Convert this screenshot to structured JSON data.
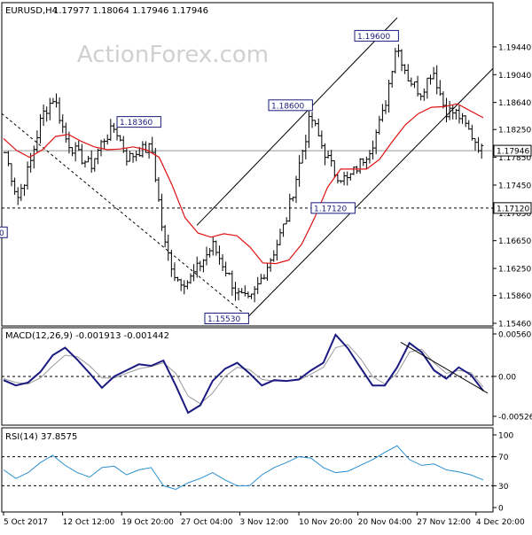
{
  "chart_data": [
    {
      "type": "ohlc",
      "title": "EURUSD,H4",
      "header_values": [
        "1.17977",
        "1.18064",
        "1.17946",
        "1.17946"
      ],
      "watermark": "ActionForex.com",
      "ylim": [
        1.1546,
        1.1986
      ],
      "yticks": [
        "1.19440",
        "1.19040",
        "1.18640",
        "1.18250",
        "1.17850",
        "1.17450",
        "1.17050",
        "1.16650",
        "1.16250",
        "1.15860",
        "1.15460"
      ],
      "current_price_label": "1.17946",
      "current_price": 1.17946,
      "level_line": {
        "label": "1.17120",
        "value": 1.1712
      },
      "annotations": [
        {
          "label": "1.18360",
          "value": 1.1836,
          "anchor": "left"
        },
        {
          "label": "1.18600",
          "value": 1.186,
          "anchor": "left"
        },
        {
          "label": "1.19600",
          "value": 1.196,
          "anchor": "left"
        },
        {
          "label": "1.17120",
          "value": 1.1712,
          "anchor": "left"
        },
        {
          "label": "1.15530",
          "value": 1.1553,
          "anchor": "left"
        },
        {
          "label": "0",
          "value": 1.1677,
          "anchor": "left-edge"
        }
      ],
      "close_path": [
        1.1792,
        1.1726,
        1.1772,
        1.1845,
        1.1872,
        1.181,
        1.1788,
        1.1772,
        1.181,
        1.1828,
        1.1783,
        1.1795,
        1.1798,
        1.1663,
        1.161,
        1.1606,
        1.1632,
        1.1658,
        1.1625,
        1.1588,
        1.1576,
        1.1612,
        1.165,
        1.1695,
        1.1769,
        1.1845,
        1.1798,
        1.1762,
        1.1752,
        1.1775,
        1.1802,
        1.1852,
        1.1948,
        1.1899,
        1.1878,
        1.1912,
        1.1853,
        1.1848,
        1.1822,
        1.1795
      ],
      "ma_line": [
        1.1812,
        1.1795,
        1.1785,
        1.1796,
        1.1815,
        1.1818,
        1.1808,
        1.18,
        1.1796,
        1.1797,
        1.18,
        1.1796,
        1.1785,
        1.1745,
        1.1698,
        1.1676,
        1.167,
        1.1675,
        1.1672,
        1.1656,
        1.1633,
        1.1632,
        1.1637,
        1.166,
        1.1698,
        1.1742,
        1.1768,
        1.1768,
        1.1768,
        1.1782,
        1.1808,
        1.1832,
        1.1848,
        1.1857,
        1.1858,
        1.1862,
        1.1852,
        1.1842
      ],
      "x_tick_labels": [
        "5 Oct 2017",
        "12 Oct 12:00",
        "19 Oct 20:00",
        "27 Oct 04:00",
        "3 Nov 12:00",
        "10 Nov 20:00",
        "20 Nov 04:00",
        "27 Nov 12:00",
        "4 Dec 20:00"
      ],
      "trendlines": [
        "descending channel line",
        "ascending channel upper",
        "ascending channel lower"
      ]
    },
    {
      "type": "line",
      "title": "MACD(12,26,9) -0.001913 -0.001442",
      "ylim": [
        -0.005267,
        0.005607
      ],
      "yticks": [
        "0.005607",
        "0.00",
        "-0.005267"
      ],
      "macd": [
        -0.0005,
        -0.0012,
        -0.0008,
        0.0006,
        0.0028,
        0.0038,
        0.0022,
        0.0004,
        -0.0015,
        0.0,
        0.0008,
        0.0016,
        0.0014,
        0.0021,
        -0.0012,
        -0.0048,
        -0.0038,
        -0.0006,
        0.001,
        0.0018,
        0.0004,
        -0.0012,
        -0.0005,
        -0.0006,
        -0.0004,
        0.0008,
        0.0018,
        0.0055,
        0.0037,
        0.0012,
        -0.0012,
        -0.0012,
        0.0012,
        0.0044,
        0.0032,
        0.0008,
        -0.0003,
        0.0012,
        0.0002,
        -0.0019
      ],
      "signal": [
        -0.0003,
        -0.0008,
        -0.001,
        -0.0002,
        0.0014,
        0.0028,
        0.0026,
        0.0014,
        -0.0002,
        -0.0002,
        0.0004,
        0.001,
        0.0013,
        0.0018,
        0.0004,
        -0.0026,
        -0.0036,
        -0.0022,
        0.0,
        0.0012,
        0.0009,
        -0.0004,
        -0.0006,
        -0.0006,
        -0.0005,
        0.0003,
        0.0012,
        0.0038,
        0.0042,
        0.0024,
        0.0,
        -0.001,
        0.0004,
        0.0032,
        0.0036,
        0.0018,
        0.0004,
        0.0008,
        0.0005,
        -0.0014
      ],
      "trendline": "descending line from top"
    },
    {
      "type": "line",
      "title": "RSI(14) 37.8575",
      "ylim": [
        0,
        100
      ],
      "yticks": [
        "100",
        "70",
        "30",
        "0"
      ],
      "rsi": [
        52,
        40,
        48,
        62,
        72,
        58,
        48,
        42,
        55,
        57,
        45,
        52,
        55,
        30,
        25,
        34,
        40,
        48,
        38,
        30,
        30,
        45,
        55,
        62,
        70,
        68,
        55,
        48,
        50,
        58,
        66,
        76,
        85,
        66,
        58,
        60,
        52,
        49,
        45,
        38
      ]
    }
  ]
}
